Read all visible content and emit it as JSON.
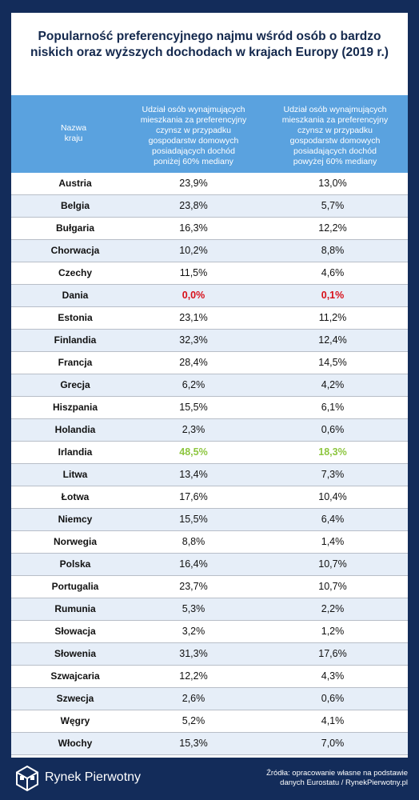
{
  "title_lines": [
    "Popularność preferencyjnego najmu wśród osób o bardzo",
    "niskich oraz wyższych dochodach w krajach Europy (2019 r.)"
  ],
  "headers": {
    "country": [
      "Nazwa",
      "kraju"
    ],
    "low": [
      "Udział osób wynajmujących",
      "mieszkania za preferencyjny",
      "czynsz w przypadku",
      "gospodarstw domowych",
      "posiadających dochód",
      "poniżej 60% mediany"
    ],
    "high": [
      "Udział osób wynajmujących",
      "mieszkania za preferencyjny",
      "czynsz w przypadku",
      "gospodarstw domowych",
      "posiadających dochód",
      "powyżej 60% mediany"
    ]
  },
  "rows": [
    {
      "country": "Austria",
      "low": "23,9%",
      "high": "13,0%"
    },
    {
      "country": "Belgia",
      "low": "23,8%",
      "high": "5,7%"
    },
    {
      "country": "Bułgaria",
      "low": "16,3%",
      "high": "12,2%"
    },
    {
      "country": "Chorwacja",
      "low": "10,2%",
      "high": "8,8%"
    },
    {
      "country": "Czechy",
      "low": "11,5%",
      "high": "4,6%"
    },
    {
      "country": "Dania",
      "low": "0,0%",
      "high": "0,1%",
      "highlight": "min"
    },
    {
      "country": "Estonia",
      "low": "23,1%",
      "high": "11,2%"
    },
    {
      "country": "Finlandia",
      "low": "32,3%",
      "high": "12,4%"
    },
    {
      "country": "Francja",
      "low": "28,4%",
      "high": "14,5%"
    },
    {
      "country": "Grecja",
      "low": "6,2%",
      "high": "4,2%"
    },
    {
      "country": "Hiszpania",
      "low": "15,5%",
      "high": "6,1%"
    },
    {
      "country": "Holandia",
      "low": "2,3%",
      "high": "0,6%"
    },
    {
      "country": "Irlandia",
      "low": "48,5%",
      "high": "18,3%",
      "highlight": "max"
    },
    {
      "country": "Litwa",
      "low": "13,4%",
      "high": "7,3%"
    },
    {
      "country": "Łotwa",
      "low": "17,6%",
      "high": "10,4%"
    },
    {
      "country": "Niemcy",
      "low": "15,5%",
      "high": "6,4%"
    },
    {
      "country": "Norwegia",
      "low": "8,8%",
      "high": "1,4%"
    },
    {
      "country": "Polska",
      "low": "16,4%",
      "high": "10,7%"
    },
    {
      "country": "Portugalia",
      "low": "23,7%",
      "high": "10,7%"
    },
    {
      "country": "Rumunia",
      "low": "5,3%",
      "high": "2,2%"
    },
    {
      "country": "Słowacja",
      "low": "3,2%",
      "high": "1,2%"
    },
    {
      "country": "Słowenia",
      "low": "31,3%",
      "high": "17,6%"
    },
    {
      "country": "Szwajcaria",
      "low": "12,2%",
      "high": "4,3%"
    },
    {
      "country": "Szwecja",
      "low": "2,6%",
      "high": "0,6%"
    },
    {
      "country": "Węgry",
      "low": "5,2%",
      "high": "4,1%"
    },
    {
      "country": "Włochy",
      "low": "15,3%",
      "high": "7,0%"
    }
  ],
  "footer": {
    "brand": "Rynek Pierwotny",
    "source_lines": [
      "Źródła: opracowanie własne na podstawie",
      "danych Eurostatu / RynekPierwotny.pl"
    ]
  },
  "colors": {
    "frame": "#132c5a",
    "header": "#5aa2df",
    "min": "#d8101a",
    "max": "#8dc63f",
    "alt_row": "#e6eef8"
  }
}
